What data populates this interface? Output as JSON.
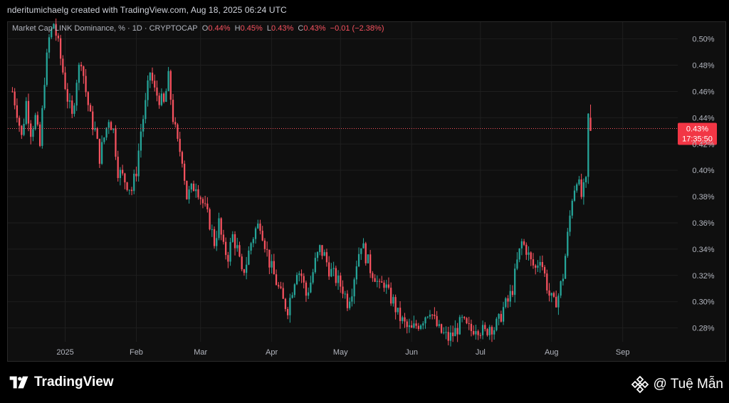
{
  "header": {
    "credit": "nderitumichaelg created with TradingView.com, Aug 18, 2025 06:24 UTC"
  },
  "legend": {
    "symbol": "Market Cap LINK Dominance, % · 1D · CRYPTOCAP",
    "o_label": "O",
    "o_value": "0.44%",
    "h_label": "H",
    "h_value": "0.45%",
    "l_label": "L",
    "l_value": "0.43%",
    "c_label": "C",
    "c_value": "0.43%",
    "change": "−0.01 (−2.38%)"
  },
  "price_tag": {
    "price": "0.43%",
    "countdown": "17:35:50",
    "value": 0.4318
  },
  "footer": {
    "brand": "TradingView",
    "handle": "@ Tuệ Mẫn"
  },
  "colors": {
    "up": "#26a69a",
    "down": "#f7525f",
    "grid": "#1f1f1f",
    "background": "#0f0f0f"
  },
  "chart_data": {
    "type": "candlestick",
    "title": "Market Cap LINK Dominance, %",
    "interval": "1D",
    "y_ticks": [
      "0.50%",
      "0.48%",
      "0.46%",
      "0.44%",
      "0.42%",
      "0.40%",
      "0.38%",
      "0.36%",
      "0.34%",
      "0.32%",
      "0.30%",
      "0.28%"
    ],
    "y_tick_values": [
      0.5,
      0.48,
      0.46,
      0.44,
      0.42,
      0.4,
      0.38,
      0.36,
      0.34,
      0.32,
      0.3,
      0.28
    ],
    "ylim": [
      0.2695,
      0.5128
    ],
    "x_ticks": [
      {
        "label": "2025",
        "date": "2025-01-01"
      },
      {
        "label": "Feb",
        "date": "2025-02-01"
      },
      {
        "label": "Mar",
        "date": "2025-03-01"
      },
      {
        "label": "Apr",
        "date": "2025-04-01"
      },
      {
        "label": "May",
        "date": "2025-05-01"
      },
      {
        "label": "Jun",
        "date": "2025-06-01"
      },
      {
        "label": "Jul",
        "date": "2025-07-01"
      },
      {
        "label": "Aug",
        "date": "2025-08-01"
      },
      {
        "label": "Sep",
        "date": "2025-09-01"
      }
    ],
    "xlim": [
      "2024-12-07",
      "2025-09-25"
    ],
    "closes": [
      [
        "2024-12-09",
        0.46
      ],
      [
        "2024-12-11",
        0.445
      ],
      [
        "2024-12-13",
        0.425
      ],
      [
        "2024-12-15",
        0.452
      ],
      [
        "2024-12-17",
        0.43
      ],
      [
        "2024-12-19",
        0.44
      ],
      [
        "2024-12-21",
        0.418
      ],
      [
        "2024-12-23",
        0.47
      ],
      [
        "2024-12-25",
        0.5
      ],
      [
        "2024-12-27",
        0.512
      ],
      [
        "2024-12-29",
        0.495
      ],
      [
        "2024-12-31",
        0.475
      ],
      [
        "2025-01-02",
        0.455
      ],
      [
        "2025-01-04",
        0.44
      ],
      [
        "2025-01-06",
        0.47
      ],
      [
        "2025-01-08",
        0.485
      ],
      [
        "2025-01-10",
        0.46
      ],
      [
        "2025-01-12",
        0.44
      ],
      [
        "2025-01-14",
        0.43
      ],
      [
        "2025-01-16",
        0.41
      ],
      [
        "2025-01-18",
        0.425
      ],
      [
        "2025-01-20",
        0.44
      ],
      [
        "2025-01-22",
        0.43
      ],
      [
        "2025-01-24",
        0.4
      ],
      [
        "2025-01-26",
        0.395
      ],
      [
        "2025-01-28",
        0.39
      ],
      [
        "2025-01-30",
        0.385
      ],
      [
        "2025-02-01",
        0.4
      ],
      [
        "2025-02-03",
        0.43
      ],
      [
        "2025-02-05",
        0.45
      ],
      [
        "2025-02-07",
        0.475
      ],
      [
        "2025-02-09",
        0.46
      ],
      [
        "2025-02-11",
        0.455
      ],
      [
        "2025-02-13",
        0.45
      ],
      [
        "2025-02-15",
        0.47
      ],
      [
        "2025-02-17",
        0.44
      ],
      [
        "2025-02-19",
        0.42
      ],
      [
        "2025-02-21",
        0.41
      ],
      [
        "2025-02-23",
        0.38
      ],
      [
        "2025-02-25",
        0.385
      ],
      [
        "2025-02-27",
        0.39
      ],
      [
        "2025-03-01",
        0.38
      ],
      [
        "2025-03-03",
        0.37
      ],
      [
        "2025-03-05",
        0.36
      ],
      [
        "2025-03-07",
        0.345
      ],
      [
        "2025-03-09",
        0.36
      ],
      [
        "2025-03-11",
        0.34
      ],
      [
        "2025-03-13",
        0.335
      ],
      [
        "2025-03-15",
        0.35
      ],
      [
        "2025-03-17",
        0.34
      ],
      [
        "2025-03-19",
        0.32
      ],
      [
        "2025-03-21",
        0.33
      ],
      [
        "2025-03-23",
        0.345
      ],
      [
        "2025-03-25",
        0.355
      ],
      [
        "2025-03-27",
        0.36
      ],
      [
        "2025-03-29",
        0.345
      ],
      [
        "2025-03-31",
        0.33
      ],
      [
        "2025-04-02",
        0.32
      ],
      [
        "2025-04-04",
        0.31
      ],
      [
        "2025-04-06",
        0.3
      ],
      [
        "2025-04-08",
        0.295
      ],
      [
        "2025-04-10",
        0.31
      ],
      [
        "2025-04-12",
        0.325
      ],
      [
        "2025-04-14",
        0.32
      ],
      [
        "2025-04-16",
        0.305
      ],
      [
        "2025-04-18",
        0.315
      ],
      [
        "2025-04-20",
        0.33
      ],
      [
        "2025-04-22",
        0.34
      ],
      [
        "2025-04-24",
        0.335
      ],
      [
        "2025-04-26",
        0.325
      ],
      [
        "2025-04-28",
        0.32
      ],
      [
        "2025-04-30",
        0.315
      ],
      [
        "2025-05-02",
        0.31
      ],
      [
        "2025-05-04",
        0.3
      ],
      [
        "2025-05-06",
        0.31
      ],
      [
        "2025-05-08",
        0.33
      ],
      [
        "2025-05-10",
        0.345
      ],
      [
        "2025-05-12",
        0.335
      ],
      [
        "2025-05-14",
        0.325
      ],
      [
        "2025-05-16",
        0.32
      ],
      [
        "2025-05-18",
        0.31
      ],
      [
        "2025-05-20",
        0.315
      ],
      [
        "2025-05-22",
        0.305
      ],
      [
        "2025-05-24",
        0.3
      ],
      [
        "2025-05-26",
        0.29
      ],
      [
        "2025-05-28",
        0.285
      ],
      [
        "2025-05-30",
        0.28
      ],
      [
        "2025-06-01",
        0.278
      ],
      [
        "2025-06-03",
        0.282
      ],
      [
        "2025-06-05",
        0.285
      ],
      [
        "2025-06-07",
        0.29
      ],
      [
        "2025-06-09",
        0.295
      ],
      [
        "2025-06-11",
        0.285
      ],
      [
        "2025-06-13",
        0.278
      ],
      [
        "2025-06-15",
        0.275
      ],
      [
        "2025-06-17",
        0.272
      ],
      [
        "2025-06-19",
        0.275
      ],
      [
        "2025-06-21",
        0.28
      ],
      [
        "2025-06-23",
        0.285
      ],
      [
        "2025-06-25",
        0.28
      ],
      [
        "2025-06-27",
        0.278
      ],
      [
        "2025-06-29",
        0.282
      ],
      [
        "2025-07-01",
        0.279
      ],
      [
        "2025-07-03",
        0.276
      ],
      [
        "2025-07-05",
        0.282
      ],
      [
        "2025-07-07",
        0.28
      ],
      [
        "2025-07-09",
        0.285
      ],
      [
        "2025-07-11",
        0.295
      ],
      [
        "2025-07-13",
        0.3
      ],
      [
        "2025-07-15",
        0.31
      ],
      [
        "2025-07-17",
        0.33
      ],
      [
        "2025-07-19",
        0.345
      ],
      [
        "2025-07-21",
        0.34
      ],
      [
        "2025-07-23",
        0.33
      ],
      [
        "2025-07-25",
        0.325
      ],
      [
        "2025-07-27",
        0.335
      ],
      [
        "2025-07-29",
        0.32
      ],
      [
        "2025-07-31",
        0.305
      ],
      [
        "2025-08-02",
        0.298
      ],
      [
        "2025-08-04",
        0.305
      ],
      [
        "2025-08-06",
        0.32
      ],
      [
        "2025-08-08",
        0.35
      ],
      [
        "2025-08-10",
        0.38
      ],
      [
        "2025-08-12",
        0.395
      ],
      [
        "2025-08-14",
        0.38
      ],
      [
        "2025-08-16",
        0.39
      ],
      [
        "2025-08-17",
        0.441
      ],
      [
        "2025-08-18",
        0.4318
      ]
    ],
    "last_candle": {
      "date": "2025-08-18",
      "open": 0.44,
      "high": 0.45,
      "low": 0.43,
      "close": 0.43
    }
  }
}
